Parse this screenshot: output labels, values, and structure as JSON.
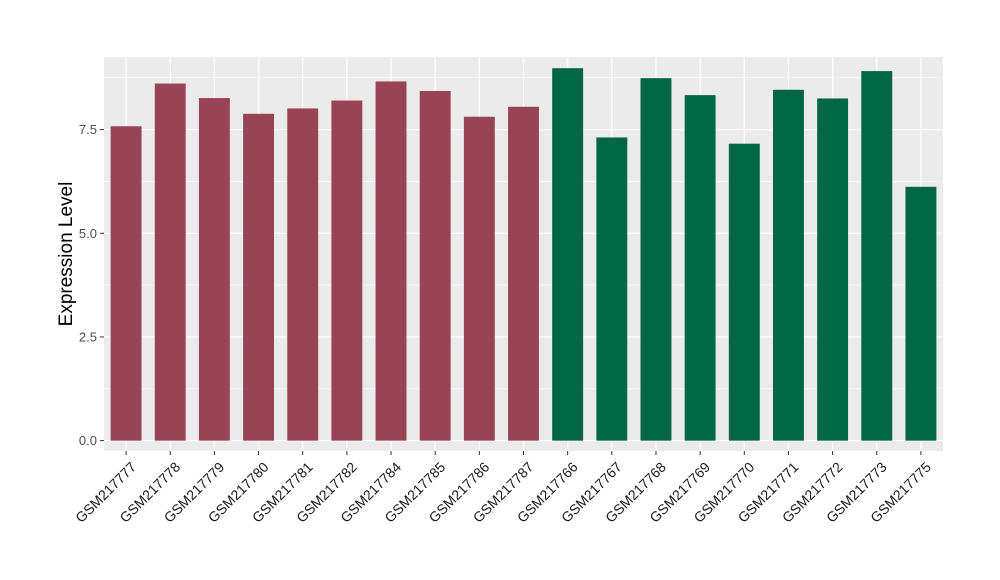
{
  "chart_data": {
    "type": "bar",
    "ylabel": "Expression Level",
    "xlabel": "",
    "ylim": [
      -0.25,
      9.25
    ],
    "yticks": [
      0.0,
      2.5,
      5.0,
      7.5
    ],
    "ytick_labels": [
      "0.0",
      "2.5",
      "5.0",
      "7.5"
    ],
    "grid": true,
    "legend": "none",
    "colors": {
      "group_1": "#994455",
      "group_2": "#006644",
      "panel": "#ebebeb",
      "grid": "#ffffff"
    },
    "categories": [
      "GSM217777",
      "GSM217778",
      "GSM217779",
      "GSM217780",
      "GSM217781",
      "GSM217782",
      "GSM217784",
      "GSM217785",
      "GSM217786",
      "GSM217787",
      "GSM217766",
      "GSM217767",
      "GSM217768",
      "GSM217769",
      "GSM217770",
      "GSM217771",
      "GSM217772",
      "GSM217773",
      "GSM217775"
    ],
    "values": [
      7.58,
      8.61,
      8.26,
      7.88,
      8.01,
      8.2,
      8.66,
      8.43,
      7.81,
      8.05,
      8.98,
      7.31,
      8.74,
      8.33,
      7.16,
      8.46,
      8.25,
      8.91,
      6.12
    ],
    "groups": [
      1,
      1,
      1,
      1,
      1,
      1,
      1,
      1,
      1,
      1,
      2,
      2,
      2,
      2,
      2,
      2,
      2,
      2,
      2
    ]
  }
}
